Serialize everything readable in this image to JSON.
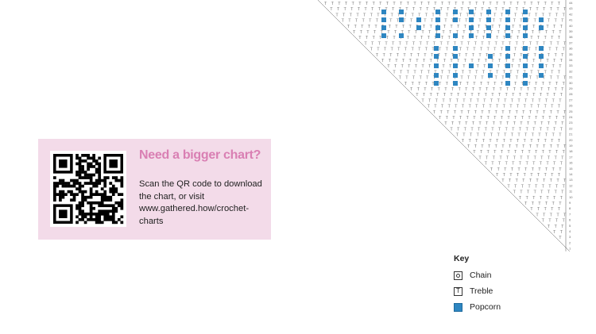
{
  "promo": {
    "title": "Need a bigger chart?",
    "body": "Scan the QR code to download the chart, or visit www.gathered.how/crochet-charts"
  },
  "chart": {
    "row_numbers_top": "43",
    "stitch_symbol": "T",
    "colors": {
      "popcorn": "#2e86c1",
      "lines": "#555555"
    }
  },
  "key": {
    "title": "Key",
    "items": [
      {
        "label": "Chain",
        "icon": "chain-icon"
      },
      {
        "label": "Treble",
        "icon": "treble-icon"
      },
      {
        "label": "Popcorn",
        "icon": "popcorn-icon"
      }
    ]
  }
}
